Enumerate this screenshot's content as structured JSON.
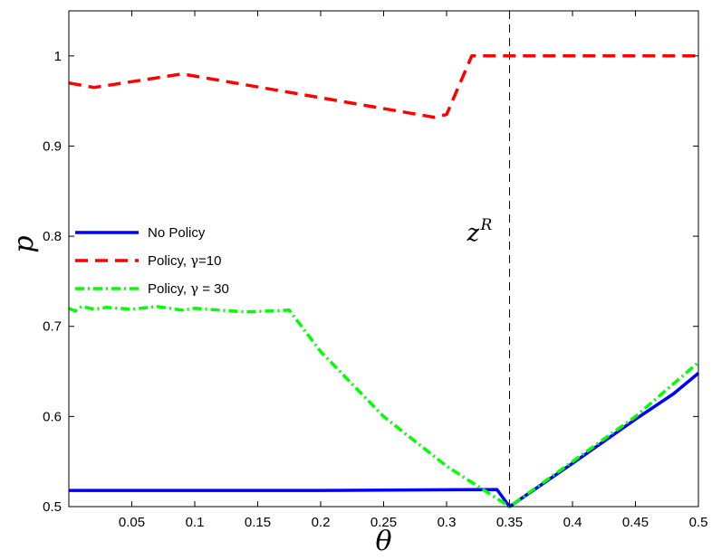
{
  "chart_data": {
    "type": "line",
    "title": "",
    "xlabel": "θ",
    "ylabel": "p",
    "xlim": [
      0,
      0.5
    ],
    "ylim": [
      0.5,
      1.05
    ],
    "xticks": [
      0.05,
      0.1,
      0.15,
      0.2,
      0.25,
      0.3,
      0.35,
      0.4,
      0.45,
      0.5
    ],
    "xtick_labels": [
      "0.05",
      "0.1",
      "0.15",
      "0.2",
      "0.25",
      "0.3",
      "0.35",
      "0.4",
      "0.45",
      "0.5"
    ],
    "yticks": [
      0.5,
      0.6,
      0.7,
      0.8,
      0.9,
      1.0
    ],
    "ytick_labels": [
      "0.5",
      "0.6",
      "0.7",
      "0.8",
      "0.9",
      "1"
    ],
    "grid": false,
    "legend_position": "middle-left",
    "series": [
      {
        "name": "No Policy",
        "color": "#0000ff",
        "style": "solid",
        "x": [
          0,
          0.2,
          0.34,
          0.35,
          0.4,
          0.45,
          0.48,
          0.5
        ],
        "y": [
          0.518,
          0.518,
          0.519,
          0.5,
          0.548,
          0.597,
          0.625,
          0.648
        ]
      },
      {
        "name": "Policy,",
        "name_symbol": "γ",
        "name_value": "=10",
        "color": "#ff0000",
        "style": "dashed",
        "x": [
          0,
          0.02,
          0.09,
          0.29,
          0.3,
          0.32,
          0.5
        ],
        "y": [
          0.97,
          0.965,
          0.98,
          0.932,
          0.935,
          1.0,
          1.0
        ]
      },
      {
        "name": "Policy,",
        "name_symbol": "γ",
        "name_value": " = 30",
        "color": "#00ff00",
        "style": "dashdot",
        "x": [
          0,
          0.005,
          0.01,
          0.02,
          0.03,
          0.05,
          0.07,
          0.09,
          0.1,
          0.12,
          0.14,
          0.16,
          0.175,
          0.2,
          0.25,
          0.3,
          0.35,
          0.4,
          0.45,
          0.5
        ],
        "y": [
          0.72,
          0.717,
          0.722,
          0.719,
          0.721,
          0.719,
          0.722,
          0.718,
          0.72,
          0.718,
          0.716,
          0.717,
          0.718,
          0.672,
          0.6,
          0.545,
          0.5,
          0.55,
          0.6,
          0.66
        ]
      }
    ],
    "vline": {
      "x": 0.35,
      "style": "dashed",
      "color": "#000000"
    },
    "annotation": {
      "base": "z",
      "sup": "R",
      "x": 0.345,
      "y": 0.795
    }
  }
}
